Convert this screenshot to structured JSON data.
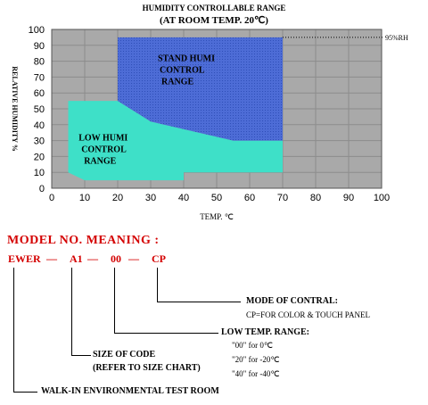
{
  "chart_data": {
    "type": "area",
    "title": "HUMIDITY CONTROLLABLE RANGE",
    "subtitle": "(AT ROOM TEMP. 20℃)",
    "xlabel": "TEMP. ℃",
    "ylabel": "RELATIVE HUMIDITY %",
    "xlim": [
      0,
      100
    ],
    "ylim": [
      0,
      100
    ],
    "x_ticks": [
      "0",
      "10",
      "20",
      "30",
      "40",
      "50",
      "60",
      "70",
      "80",
      "90",
      "100"
    ],
    "y_ticks": [
      "0",
      "10",
      "20",
      "30",
      "40",
      "50",
      "60",
      "70",
      "80",
      "90",
      "100"
    ],
    "grid": true,
    "regions": [
      {
        "name": "LOW HUMI CONTROL RANGE",
        "label_lines": [
          "LOW HUMI",
          "CONTROL",
          "RANGE"
        ],
        "color": "#3ee0c8",
        "polygon": [
          [
            5,
            10
          ],
          [
            5,
            55
          ],
          [
            20,
            55
          ],
          [
            30,
            42
          ],
          [
            55,
            30
          ],
          [
            70,
            30
          ],
          [
            70,
            10
          ],
          [
            40,
            10
          ],
          [
            40,
            5
          ],
          [
            10,
            5
          ],
          [
            5,
            10
          ]
        ]
      },
      {
        "name": "STAND HUMI CONTROL RANGE",
        "label_lines": [
          "STAND HUMI",
          "CONTROL",
          "RANGE"
        ],
        "color": "#4d6cd6",
        "polygon": [
          [
            20,
            95
          ],
          [
            70,
            95
          ],
          [
            70,
            30
          ],
          [
            55,
            30
          ],
          [
            30,
            42
          ],
          [
            20,
            55
          ]
        ]
      }
    ],
    "annotations": [
      {
        "text": "95%RH",
        "y": 95
      }
    ]
  },
  "model": {
    "title": "MODEL NO. MEANING :",
    "codes": [
      "EWER",
      "—",
      "A1",
      "—",
      "00",
      "—",
      "CP"
    ],
    "mode": {
      "label": "MODE OF CONTRAL:",
      "desc": "CP=FOR COLOR & TOUCH PANEL"
    },
    "low_temp": {
      "label": "LOW TEMP. RANGE:",
      "lines": [
        "\"00\"  for   0℃",
        "\"20\"  for -20℃",
        "\"40\"  for -40℃"
      ]
    },
    "size": {
      "label": "SIZE OF CODE",
      "desc": "(REFER TO SIZE CHART)"
    },
    "walkin": {
      "label": "WALK-IN ENVIRONMENTAL TEST ROOM"
    }
  }
}
